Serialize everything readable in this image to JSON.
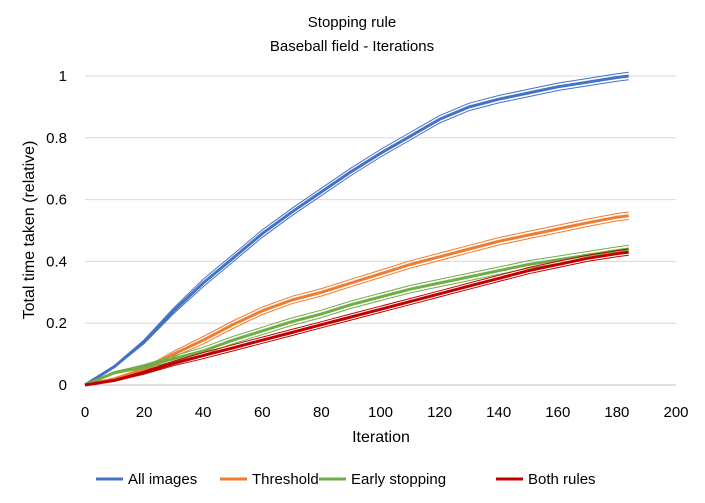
{
  "chart_data": {
    "type": "line",
    "title": "Stopping rule",
    "subtitle": "Baseball field - Iterations",
    "xlabel": "Iteration",
    "ylabel": "Total time taken (relative)",
    "xlim": [
      0,
      200
    ],
    "ylim": [
      0,
      1
    ],
    "xticks": [
      "0",
      "20",
      "40",
      "60",
      "80",
      "100",
      "120",
      "140",
      "160",
      "180",
      "200"
    ],
    "yticks": [
      "0",
      "0.2",
      "0.4",
      "0.6",
      "0.8",
      "1"
    ],
    "grid": true,
    "legend_position": "bottom",
    "series": [
      {
        "name": "All images",
        "color": "#4472C4",
        "x": [
          0,
          10,
          20,
          30,
          40,
          50,
          60,
          70,
          80,
          90,
          100,
          110,
          120,
          130,
          140,
          150,
          160,
          170,
          180,
          184
        ],
        "values": [
          0,
          0.06,
          0.14,
          0.24,
          0.33,
          0.41,
          0.49,
          0.56,
          0.625,
          0.69,
          0.75,
          0.805,
          0.86,
          0.9,
          0.925,
          0.945,
          0.965,
          0.98,
          0.995,
          1.0
        ],
        "band": 0.012
      },
      {
        "name": "Threshold",
        "color": "#ED7D31",
        "x": [
          0,
          10,
          20,
          30,
          40,
          50,
          60,
          70,
          80,
          90,
          100,
          110,
          120,
          130,
          140,
          150,
          160,
          170,
          180,
          184
        ],
        "values": [
          0,
          0.02,
          0.05,
          0.1,
          0.145,
          0.195,
          0.24,
          0.275,
          0.3,
          0.33,
          0.36,
          0.39,
          0.415,
          0.44,
          0.465,
          0.485,
          0.505,
          0.525,
          0.543,
          0.548
        ],
        "band": 0.012
      },
      {
        "name": "Early stopping",
        "color": "#70AD47",
        "x": [
          0,
          10,
          20,
          30,
          40,
          50,
          60,
          70,
          80,
          90,
          100,
          110,
          120,
          130,
          140,
          150,
          160,
          170,
          180,
          184
        ],
        "values": [
          0,
          0.04,
          0.06,
          0.085,
          0.11,
          0.145,
          0.175,
          0.205,
          0.23,
          0.26,
          0.285,
          0.31,
          0.33,
          0.35,
          0.37,
          0.39,
          0.405,
          0.42,
          0.435,
          0.44
        ],
        "band": 0.012
      },
      {
        "name": "Both rules",
        "color": "#C00000",
        "x": [
          0,
          10,
          20,
          30,
          40,
          50,
          60,
          70,
          80,
          90,
          100,
          110,
          120,
          130,
          140,
          150,
          160,
          170,
          180,
          184
        ],
        "values": [
          0,
          0.015,
          0.04,
          0.07,
          0.095,
          0.12,
          0.145,
          0.17,
          0.195,
          0.22,
          0.245,
          0.27,
          0.295,
          0.32,
          0.345,
          0.37,
          0.39,
          0.41,
          0.425,
          0.43
        ],
        "band": 0.01
      }
    ]
  }
}
